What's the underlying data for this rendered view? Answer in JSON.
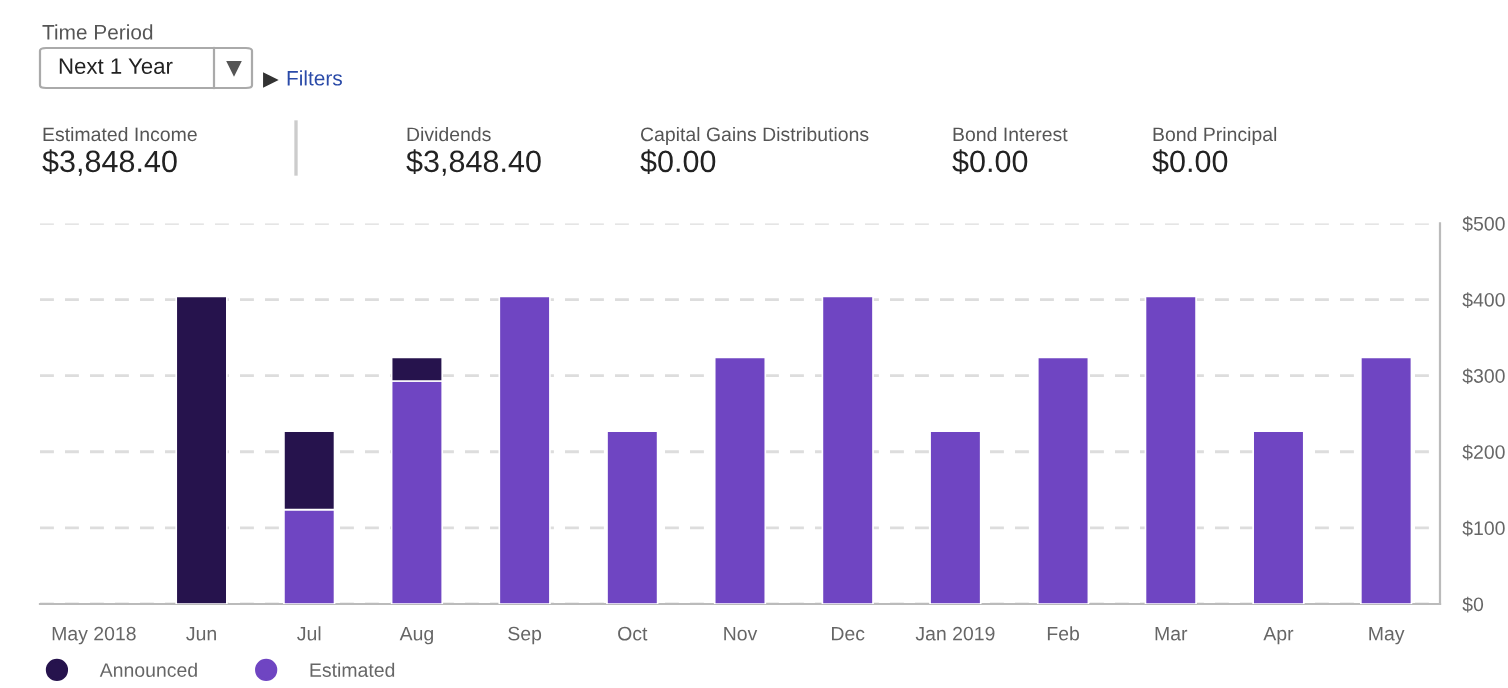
{
  "chart_data": [
    {
      "type": "other",
      "annotations": [
        "Time Period",
        "Next 1 Year",
        "Filters",
        "Estimated Income",
        "$3,848.40",
        "Dividends",
        "$3,848.40",
        "Capital Gains Distributions",
        "$0.00",
        "Bond Interest",
        "$0.00",
        "Bond Principal",
        "$0.00"
      ]
    },
    {
      "type": "bar",
      "stacked": true,
      "categories": [
        "May 2018",
        "Jun",
        "Jul",
        "Aug",
        "Sep",
        "Oct",
        "Nov",
        "Dec",
        "Jan 2019",
        "Feb",
        "Mar",
        "Apr",
        "May"
      ],
      "series": [
        {
          "name": "Estimated",
          "color": "#6f45c2",
          "values": [
            null,
            null,
            124,
            293,
            404,
            227,
            324,
            404,
            227,
            324,
            404,
            227,
            324
          ]
        },
        {
          "name": "Announced",
          "color": "#26134d",
          "values": [
            null,
            404,
            103,
            31,
            null,
            null,
            null,
            null,
            null,
            null,
            null,
            null,
            null
          ]
        }
      ],
      "ylim": [
        0,
        500
      ],
      "yticks": [
        {
          "value": 0,
          "label": "$0"
        },
        {
          "value": 100,
          "label": "$100"
        },
        {
          "value": 200,
          "label": "$200"
        },
        {
          "value": 300,
          "label": "$300"
        },
        {
          "value": 400,
          "label": "$400"
        },
        {
          "value": 500,
          "label": "$500"
        }
      ],
      "grid": "y",
      "legend": "bottom left"
    }
  ]
}
